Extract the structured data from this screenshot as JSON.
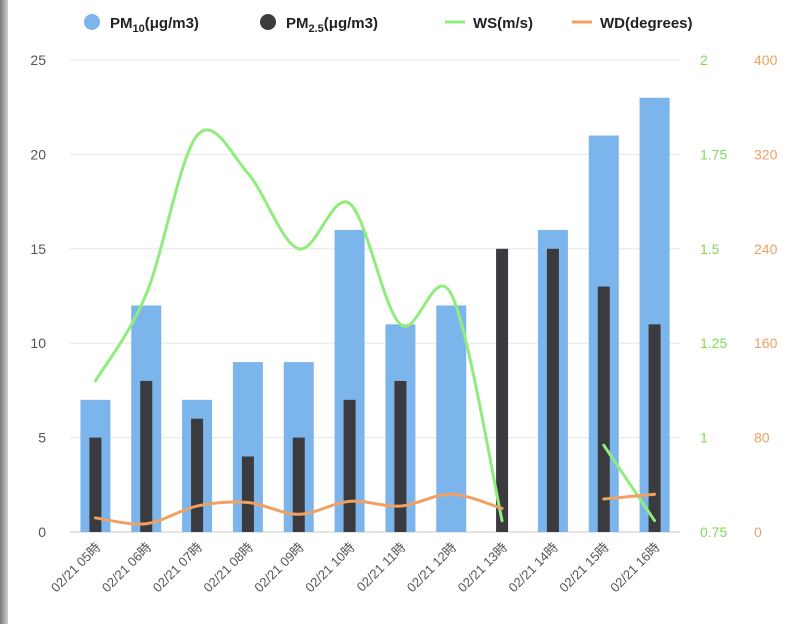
{
  "chart_data": {
    "type": "bar",
    "categories": [
      "02/21 05時",
      "02/21 06時",
      "02/21 07時",
      "02/21 08時",
      "02/21 09時",
      "02/21 10時",
      "02/21 11時",
      "02/21 12時",
      "02/21 13時",
      "02/21 14時",
      "02/21 15時",
      "02/21 16時"
    ],
    "series": [
      {
        "name": "PM10(μg/m3)",
        "type": "bar",
        "axis": "left",
        "color": "#7cb5ec",
        "values": [
          7,
          12,
          7,
          9,
          9,
          16,
          11,
          12,
          null,
          16,
          21,
          23
        ]
      },
      {
        "name": "PM2.5(μg/m3)",
        "type": "bar",
        "axis": "left",
        "color": "#3a3a3f",
        "values": [
          5,
          8,
          6,
          4,
          5,
          7,
          8,
          null,
          15,
          15,
          13,
          11
        ]
      },
      {
        "name": "WS(m/s)",
        "type": "line",
        "axis": "ws",
        "color": "#90ed7d",
        "values": [
          1.15,
          1.38,
          1.8,
          1.7,
          1.5,
          1.62,
          1.3,
          1.38,
          0.78,
          null,
          0.98,
          0.78
        ]
      },
      {
        "name": "WD(degrees)",
        "type": "line",
        "axis": "wd",
        "color": "#f0a060",
        "values": [
          12,
          7,
          22,
          25,
          15,
          26,
          22,
          32,
          20,
          null,
          28,
          32
        ]
      }
    ],
    "axes": {
      "left": {
        "min": 0,
        "max": 25,
        "ticks": [
          "0",
          "5",
          "10",
          "15",
          "20",
          "25"
        ]
      },
      "ws": {
        "min": 0.75,
        "max": 2,
        "ticks": [
          "0.75",
          "1",
          "1.25",
          "1.5",
          "1.75",
          "2"
        ]
      },
      "wd": {
        "min": 0,
        "max": 400,
        "ticks": [
          "0",
          "80",
          "160",
          "240",
          "320",
          "400"
        ]
      }
    },
    "legend": {
      "position": "top",
      "items": [
        {
          "main": "PM",
          "sub": "10",
          "suffix": "(μg/m3)",
          "marker": "circle",
          "color": "#7cb5ec"
        },
        {
          "main": "PM",
          "sub": "2.5",
          "suffix": "(μg/m3)",
          "marker": "circle",
          "color": "#3a3a3f"
        },
        {
          "main": "WS(m/s)",
          "sub": "",
          "suffix": "",
          "marker": "line",
          "color": "#90ed7d"
        },
        {
          "main": "WD(degrees)",
          "sub": "",
          "suffix": "",
          "marker": "line",
          "color": "#f0a060"
        }
      ]
    },
    "grid": true
  }
}
